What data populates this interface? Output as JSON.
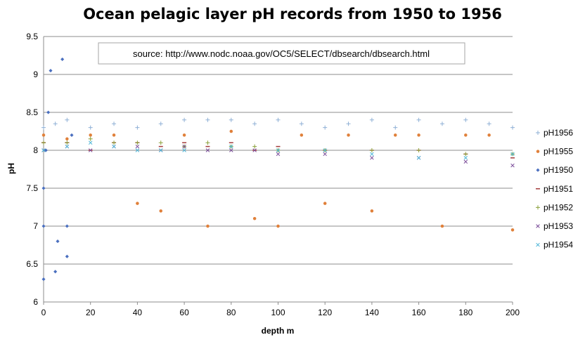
{
  "chart_data": {
    "type": "scatter",
    "title": "Ocean pelagic layer pH records from 1950 to 1956",
    "xlabel": "depth m",
    "ylabel": "pH",
    "annotation": "source: http://www.nodc.noaa.gov/OC5/SELECT/dbsearch/dbsearch.html",
    "xlim": [
      0,
      200
    ],
    "ylim": [
      6,
      9.5
    ],
    "x_ticks": [
      "0",
      "20",
      "40",
      "60",
      "80",
      "100",
      "120",
      "140",
      "160",
      "180",
      "200"
    ],
    "y_ticks": [
      "6",
      "6.5",
      "7",
      "7.5",
      "8",
      "8.5",
      "9",
      "9.5"
    ],
    "grid": "horizontal",
    "legend_position": "right",
    "series": [
      {
        "name": "pH1956",
        "color": "#8fb0d6",
        "marker": "plus",
        "x": [
          0,
          5,
          10,
          20,
          30,
          40,
          50,
          60,
          70,
          80,
          90,
          100,
          110,
          120,
          130,
          140,
          150,
          160,
          170,
          180,
          190,
          200
        ],
        "y": [
          8.3,
          8.35,
          8.4,
          8.3,
          8.35,
          8.3,
          8.35,
          8.4,
          8.4,
          8.4,
          8.35,
          8.4,
          8.35,
          8.3,
          8.35,
          8.4,
          8.3,
          8.4,
          8.35,
          8.4,
          8.35,
          8.3
        ]
      },
      {
        "name": "pH1955",
        "color": "#e0803a",
        "marker": "circle",
        "x": [
          0,
          10,
          20,
          30,
          40,
          50,
          60,
          70,
          80,
          90,
          100,
          110,
          120,
          130,
          140,
          150,
          160,
          170,
          180,
          190,
          200
        ],
        "y": [
          8.2,
          8.15,
          8.2,
          8.2,
          7.3,
          7.2,
          8.2,
          7.0,
          8.25,
          7.1,
          7.0,
          8.2,
          7.3,
          8.2,
          7.2,
          8.2,
          8.2,
          7.0,
          8.2,
          8.2,
          6.95
        ]
      },
      {
        "name": "pH1950",
        "color": "#4a6fbf",
        "marker": "diamond",
        "x": [
          0,
          0,
          0,
          1,
          2,
          3,
          5,
          6,
          8,
          10,
          10,
          12
        ],
        "y": [
          6.3,
          7.0,
          7.5,
          8.0,
          8.5,
          9.05,
          6.4,
          6.8,
          9.2,
          6.6,
          7.0,
          8.2
        ]
      },
      {
        "name": "pH1951",
        "color": "#a33b3b",
        "marker": "dash",
        "x": [
          0,
          10,
          20,
          30,
          40,
          50,
          60,
          70,
          80,
          90,
          100,
          120,
          140,
          160,
          180,
          200
        ],
        "y": [
          8.1,
          8.1,
          8.0,
          8.1,
          8.1,
          8.05,
          8.1,
          8.05,
          8.1,
          8.0,
          8.05,
          8.0,
          8.0,
          8.0,
          7.95,
          7.9
        ]
      },
      {
        "name": "pH1952",
        "color": "#8aa03a",
        "marker": "plus",
        "x": [
          0,
          10,
          20,
          30,
          40,
          50,
          60,
          70,
          80,
          90,
          100,
          120,
          140,
          160,
          180,
          200
        ],
        "y": [
          8.1,
          8.1,
          8.15,
          8.1,
          8.1,
          8.1,
          8.05,
          8.1,
          8.05,
          8.05,
          8.0,
          8.0,
          8.0,
          8.0,
          7.95,
          7.95
        ]
      },
      {
        "name": "pH1953",
        "color": "#7a4c99",
        "marker": "x",
        "x": [
          0,
          10,
          20,
          30,
          40,
          50,
          60,
          70,
          80,
          90,
          100,
          120,
          140,
          160,
          180,
          200
        ],
        "y": [
          8.0,
          8.05,
          8.0,
          8.05,
          8.05,
          8.0,
          8.05,
          8.0,
          8.0,
          8.0,
          7.95,
          7.95,
          7.9,
          7.9,
          7.85,
          7.8
        ]
      },
      {
        "name": "pH1954",
        "color": "#4fb6d8",
        "marker": "x",
        "x": [
          0,
          10,
          20,
          30,
          40,
          50,
          60,
          80,
          100,
          120,
          140,
          160,
          180,
          200
        ],
        "y": [
          8.0,
          8.05,
          8.1,
          8.05,
          8.0,
          8.0,
          8.0,
          8.05,
          8.0,
          8.0,
          7.95,
          7.9,
          7.9,
          7.95
        ]
      }
    ]
  }
}
